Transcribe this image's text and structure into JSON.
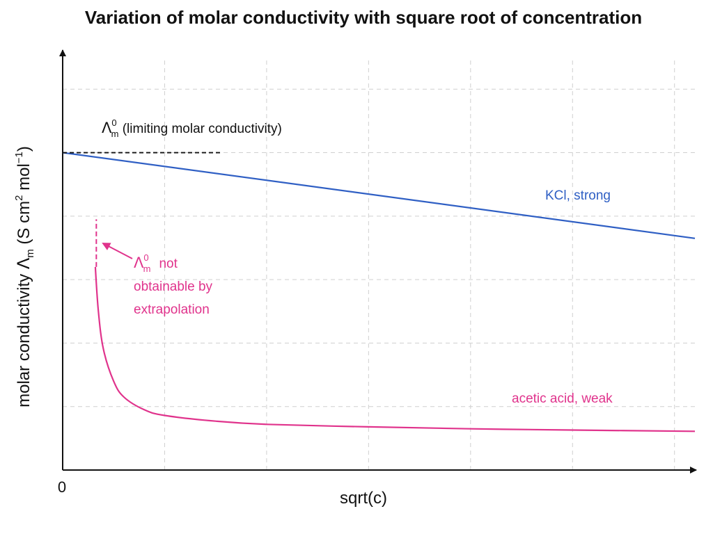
{
  "chart_data": {
    "type": "line",
    "title": "Variation of molar conductivity with square root of concentration",
    "xlabel": "sqrt(c)",
    "ylabel": {
      "prefix": "molar conductivity ",
      "symbol": "Λ",
      "symbol_sub": "m",
      "unit_open": " (S cm",
      "unit_sup1": "2",
      "unit_mid": " mol",
      "unit_sup2": "−1",
      "unit_close": ")"
    },
    "x_tick_labels": [
      "0"
    ],
    "xlim": [
      0,
      6.2
    ],
    "ylim": [
      0,
      6.2
    ],
    "grid": true,
    "series": [
      {
        "name": "KCl, strong",
        "color": "#2f5fc4",
        "x": [
          0,
          6.2
        ],
        "y": [
          5.0,
          3.65
        ]
      },
      {
        "name": "acetic acid, weak",
        "color": "#e0338c",
        "x": [
          0.32,
          0.35,
          0.4,
          0.5,
          0.6,
          0.8,
          1.0,
          1.5,
          2.0,
          3.0,
          4.0,
          5.0,
          6.2
        ],
        "y": [
          3.2,
          2.5,
          1.9,
          1.4,
          1.15,
          0.95,
          0.86,
          0.77,
          0.72,
          0.68,
          0.65,
          0.63,
          0.61
        ]
      }
    ],
    "annotations": {
      "limiting": {
        "symbol": "Λ",
        "sup": "0",
        "sub": "m",
        "text": " (limiting molar conductivity)",
        "color": "#111111",
        "x_end": 1.55,
        "y": 5.0
      },
      "weak_extrapolation": {
        "symbol": "Λ",
        "sup": "0",
        "sub": "m",
        "line1": "not",
        "line2": "obtainable by",
        "line3": "extrapolation",
        "color": "#e0338c",
        "dash_x": 0.33,
        "dash_y": [
          3.2,
          3.95
        ]
      }
    }
  }
}
